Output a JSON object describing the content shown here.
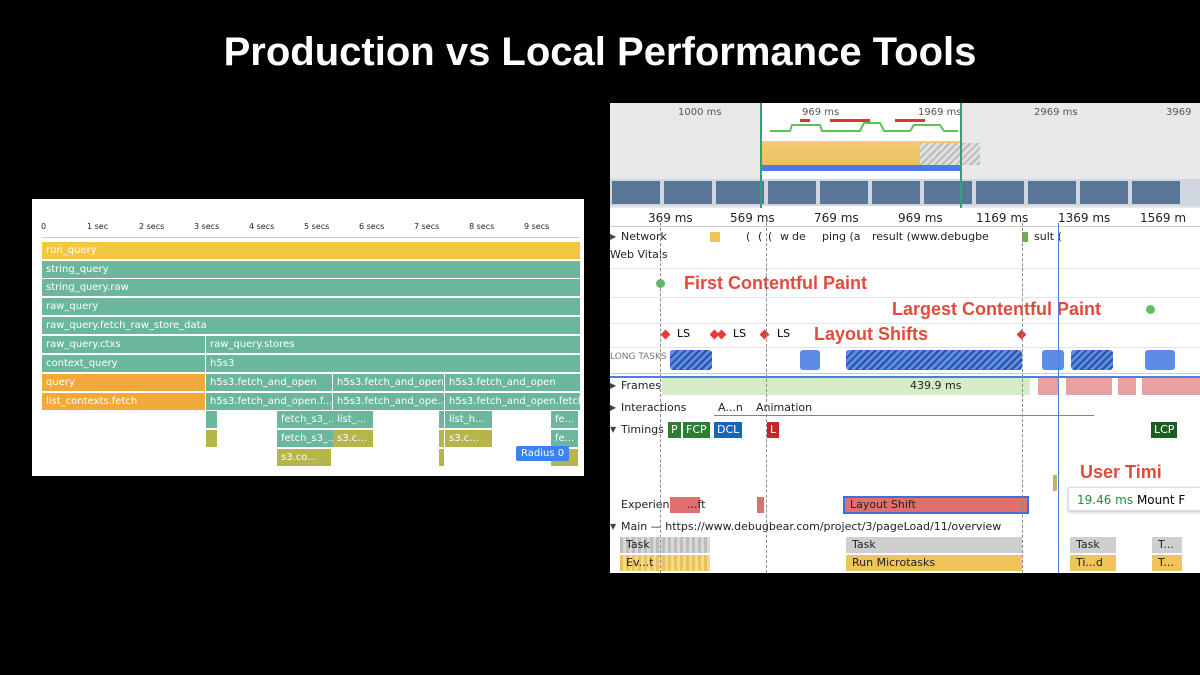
{
  "title": "Production vs Local Performance Tools",
  "left_panel": {
    "ticks": [
      "0",
      "1 sec",
      "2 secs",
      "3 secs",
      "4 secs",
      "5 secs",
      "6 secs",
      "7 secs",
      "8 secs",
      "9 secs"
    ],
    "bars": {
      "run_query": "run_query",
      "string_query": "string_query",
      "string_query_raw": "string_query.raw",
      "raw_query": "raw_query",
      "raw_query_fetch": "raw_query.fetch_raw_store_data",
      "raw_query_ctxs": "raw_query.ctxs",
      "raw_query_stores": "raw_query.stores",
      "context_query": "context_query",
      "h5s3": "h5s3",
      "query": "query",
      "fetch_open_1": "h5s3.fetch_and_open",
      "fetch_open_2": "h5s3.fetch_and_open",
      "fetch_open_3": "h5s3.fetch_and_open",
      "list_contexts": "list_contexts.fetch",
      "fetch_open_f": "h5s3.fetch_and_open.f...",
      "fetch_open_ope": "h5s3.fetch_and_ope...",
      "fetch_open_fetch": "h5s3.fetch_and_open.fetch",
      "fetch_s3_a": "fetch_s3_...",
      "list_a": "list_...",
      "list_h": "list_h...",
      "fe_a": "fe...",
      "fetch_s3_b": "fetch_s3_...",
      "s3c_a": "s3.c...",
      "s3c_b": "s3.c...",
      "fe_b": "fe...",
      "s3co": "s3.co..."
    },
    "radius_label": "Radius 0"
  },
  "right_panel": {
    "overview_ticks": [
      "1000 ms",
      "969 ms",
      "1969 ms",
      "2969 ms",
      "3969"
    ],
    "timeline_ticks": [
      "369 ms",
      "569 ms",
      "769 ms",
      "969 ms",
      "1169 ms",
      "1369 ms",
      "1569 m"
    ],
    "network_label": "Network",
    "network_items": [
      "(",
      "(",
      "(",
      "w",
      "de",
      "ping (a",
      "result (www.debugbe",
      "sult ("
    ],
    "web_vitals_label": "Web Vitals",
    "fcp_label": "First Contentful Paint",
    "lcp_label": "Largest Contentful Paint",
    "ls_label": "LS",
    "layout_shifts_label": "Layout Shifts",
    "long_tasks_label": "LONG TASKS",
    "frames_label": "Frames",
    "frames_value": "439.9 ms",
    "interactions_label": "Interactions",
    "interaction_a": "A...n",
    "interaction_b": "Animation",
    "timings_label": "Timings",
    "timing_p": "P",
    "timing_fcp": "FCP",
    "timing_dcl": "DCL",
    "timing_l": "L",
    "timing_lcp": "LCP",
    "user_timing_label": "User Timi",
    "tooltip_ms": "19.46 ms",
    "tooltip_name": "Mount F",
    "experience_label": "Experience",
    "experience_ft": "...ft",
    "experience_ls": "Layout Shift",
    "main_label": "Main — https://www.debugbear.com/project/3/pageLoad/11/overview",
    "task_label": "Task",
    "task_label_2": "Task",
    "task_label_3": "Task",
    "task_label_4": "T...",
    "evt_label": "Ev...t",
    "run_microtasks": "Run Microtasks",
    "tid_label": "Ti...d",
    "t_label": "T..."
  },
  "colors": {
    "teal": "#6ab79b",
    "yellow": "#f5c642",
    "orange": "#f2a93b",
    "olive": "#b5b54a",
    "red_label": "#e04b3c",
    "blue": "#5b8de6"
  }
}
